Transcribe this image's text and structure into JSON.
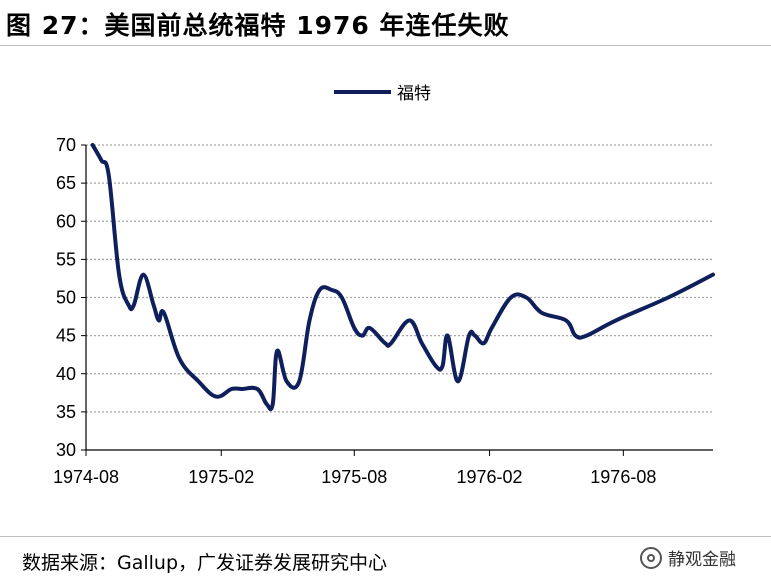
{
  "header": {
    "title": "图 27：美国前总统福特 1976 年连任失败"
  },
  "footer": {
    "source": "数据来源：Gallup，广发证券发展研究中心",
    "watermark": "静观金融"
  },
  "colors": {
    "series": "#0e1f5b",
    "grid": "#a6a6a6",
    "axis": "#000000"
  },
  "chart_data": {
    "type": "line",
    "title": "",
    "xlabel": "",
    "ylabel": "",
    "ylim": [
      30,
      70
    ],
    "yticks": [
      30,
      35,
      40,
      45,
      50,
      55,
      60,
      65,
      70
    ],
    "xlim": [
      "1974-08",
      "1976-12"
    ],
    "xticks": [
      "1974-08",
      "1975-02",
      "1975-08",
      "1976-02",
      "1976-08"
    ],
    "grid": true,
    "legend": "top-center",
    "series": [
      {
        "name": "福特",
        "points": [
          [
            "1974-08-10",
            70
          ],
          [
            "1974-08-22",
            68
          ],
          [
            "1974-09-01",
            66
          ],
          [
            "1974-09-15",
            53
          ],
          [
            "1974-09-28",
            49
          ],
          [
            "1974-10-05",
            49
          ],
          [
            "1974-10-18",
            53
          ],
          [
            "1974-11-01",
            49
          ],
          [
            "1974-11-08",
            47
          ],
          [
            "1974-11-15",
            48
          ],
          [
            "1974-12-06",
            42
          ],
          [
            "1975-01-01",
            39
          ],
          [
            "1975-01-25",
            37
          ],
          [
            "1975-02-15",
            38
          ],
          [
            "1975-03-01",
            38
          ],
          [
            "1975-03-22",
            38
          ],
          [
            "1975-04-04",
            36
          ],
          [
            "1975-04-12",
            36
          ],
          [
            "1975-04-18",
            43
          ],
          [
            "1975-05-01",
            39
          ],
          [
            "1975-05-18",
            39
          ],
          [
            "1975-06-01",
            47
          ],
          [
            "1975-06-15",
            51
          ],
          [
            "1975-07-01",
            51
          ],
          [
            "1975-07-15",
            50
          ],
          [
            "1975-08-01",
            46
          ],
          [
            "1975-08-12",
            45
          ],
          [
            "1975-08-22",
            46
          ],
          [
            "1975-09-12",
            44
          ],
          [
            "1975-09-20",
            44
          ],
          [
            "1975-10-15",
            47
          ],
          [
            "1975-11-01",
            44
          ],
          [
            "1975-11-20",
            41
          ],
          [
            "1975-11-29",
            41
          ],
          [
            "1975-12-06",
            45
          ],
          [
            "1975-12-20",
            39
          ],
          [
            "1976-01-04",
            45
          ],
          [
            "1976-01-12",
            45
          ],
          [
            "1976-01-24",
            44
          ],
          [
            "1976-02-04",
            46
          ],
          [
            "1976-03-01",
            50
          ],
          [
            "1976-03-22",
            50
          ],
          [
            "1976-04-12",
            48
          ],
          [
            "1976-05-15",
            47
          ],
          [
            "1976-05-28",
            45
          ],
          [
            "1976-06-12",
            45
          ],
          [
            "1976-07-22",
            47
          ],
          [
            "1976-10-01",
            50
          ],
          [
            "1976-12-01",
            53
          ]
        ]
      }
    ]
  }
}
